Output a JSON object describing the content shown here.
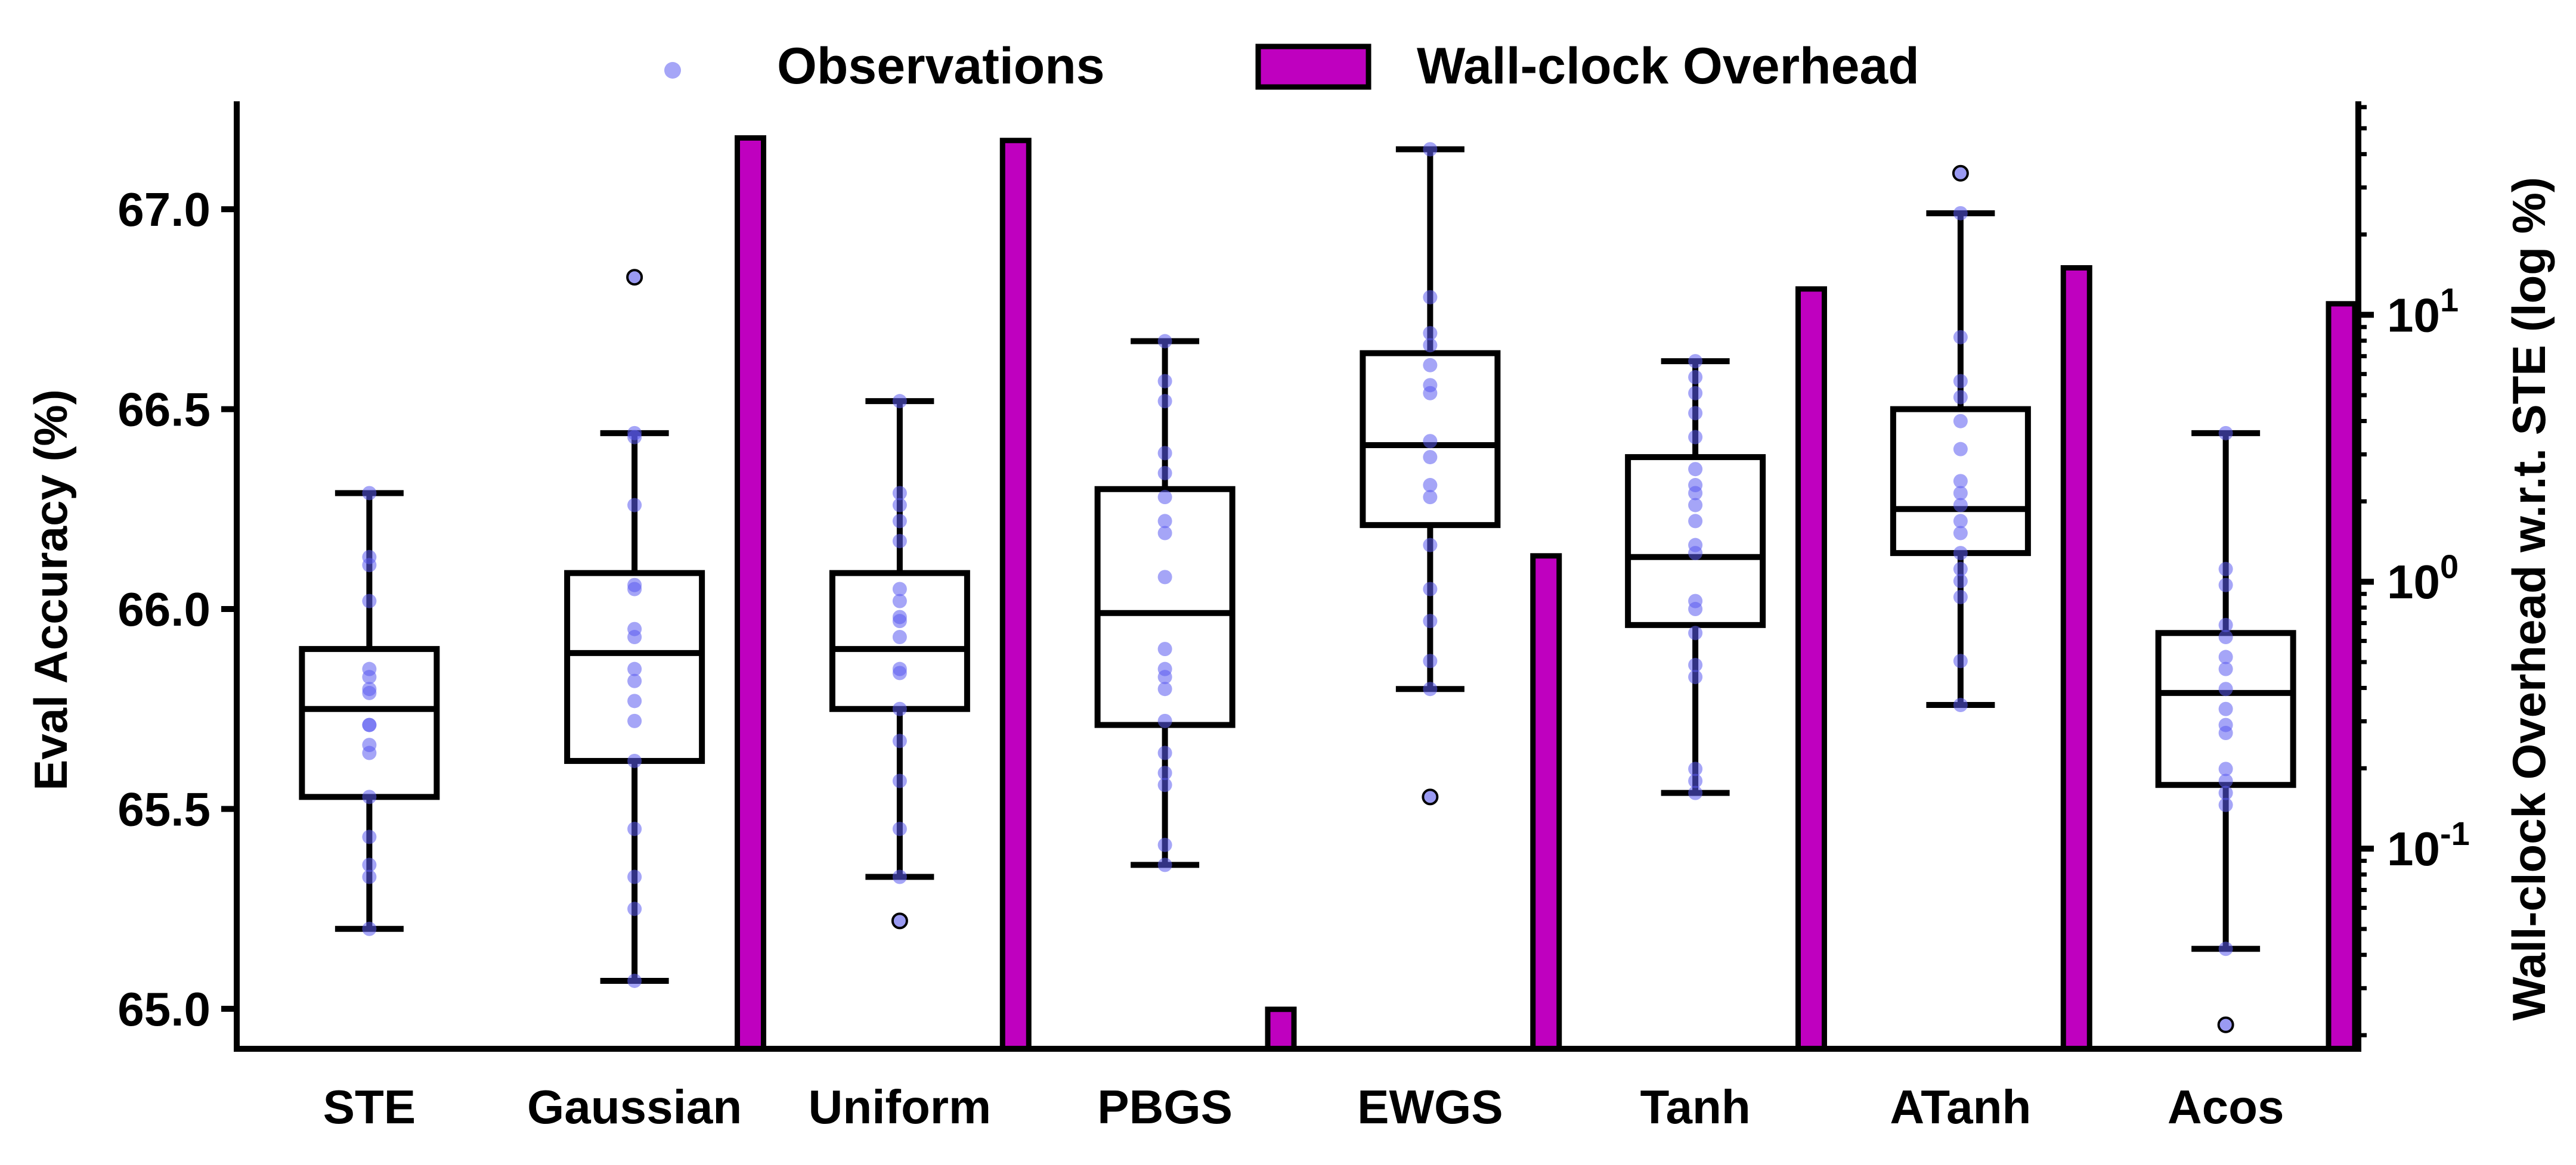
{
  "chart_data": {
    "type": "box+bar",
    "title": "",
    "xlabel": "",
    "ylabel": "Eval Accuracy (%)",
    "y2label": "Wall-clock Overhead w.r.t. STE (log %)",
    "ylim": [
      64.9,
      67.27
    ],
    "y2lim_log10": [
      -1.75,
      1.8
    ],
    "y_ticks": [
      65.0,
      65.5,
      66.0,
      66.5,
      67.0
    ],
    "y_tick_labels": [
      "65.0",
      "65.5",
      "66.0",
      "66.5",
      "67.0"
    ],
    "y2_ticks_log10": [
      -1,
      0,
      1
    ],
    "y2_tick_labels": [
      {
        "base": "10",
        "exp": "-1"
      },
      {
        "base": "10",
        "exp": "0"
      },
      {
        "base": "10",
        "exp": "1"
      }
    ],
    "legend": {
      "placement": "top-center",
      "entries": [
        {
          "label": "Observations",
          "kind": "dot"
        },
        {
          "label": "Wall-clock Overhead",
          "kind": "bar"
        }
      ]
    },
    "colors": {
      "observation": "#5b5bf0",
      "outlier_fill": "#9a9af2",
      "bar_fill": "#bf00bf",
      "box_stroke": "#000000"
    },
    "categories": [
      "STE",
      "Gaussian",
      "Uniform",
      "PBGS",
      "EWGS",
      "Tanh",
      "ATanh",
      "Acos"
    ],
    "boxes": [
      {
        "category": "STE",
        "whisker_low": 65.2,
        "q1": 65.53,
        "median": 65.75,
        "q3": 65.9,
        "whisker_high": 66.29,
        "outliers": []
      },
      {
        "category": "Gaussian",
        "whisker_low": 65.07,
        "q1": 65.62,
        "median": 65.89,
        "q3": 66.09,
        "whisker_high": 66.44,
        "outliers": [
          66.83
        ]
      },
      {
        "category": "Uniform",
        "whisker_low": 65.33,
        "q1": 65.75,
        "median": 65.9,
        "q3": 66.09,
        "whisker_high": 66.52,
        "outliers": [
          65.22
        ]
      },
      {
        "category": "PBGS",
        "whisker_low": 65.36,
        "q1": 65.71,
        "median": 65.99,
        "q3": 66.3,
        "whisker_high": 66.67,
        "outliers": []
      },
      {
        "category": "EWGS",
        "whisker_low": 65.8,
        "q1": 66.21,
        "median": 66.41,
        "q3": 66.64,
        "whisker_high": 67.15,
        "outliers": [
          65.53
        ]
      },
      {
        "category": "Tanh",
        "whisker_low": 65.54,
        "q1": 65.96,
        "median": 66.13,
        "q3": 66.38,
        "whisker_high": 66.62,
        "outliers": []
      },
      {
        "category": "ATanh",
        "whisker_low": 65.76,
        "q1": 66.14,
        "median": 66.25,
        "q3": 66.5,
        "whisker_high": 66.99,
        "outliers": [
          67.09
        ]
      },
      {
        "category": "Acos",
        "whisker_low": 65.15,
        "q1": 65.56,
        "median": 65.79,
        "q3": 65.94,
        "whisker_high": 66.44,
        "outliers": [
          64.96
        ]
      }
    ],
    "observations": [
      [
        65.2,
        65.33,
        65.36,
        65.43,
        65.53,
        65.64,
        65.66,
        65.71,
        65.71,
        65.79,
        65.8,
        65.83,
        65.85,
        66.02,
        66.11,
        66.13,
        66.29
      ],
      [
        65.07,
        65.25,
        65.33,
        65.45,
        65.62,
        65.72,
        65.77,
        65.82,
        65.85,
        65.93,
        65.95,
        66.05,
        66.06,
        66.26,
        66.43,
        66.44
      ],
      [
        65.33,
        65.45,
        65.57,
        65.67,
        65.75,
        65.84,
        65.85,
        65.93,
        65.97,
        65.98,
        66.02,
        66.05,
        66.17,
        66.22,
        66.26,
        66.29,
        66.52
      ],
      [
        65.36,
        65.41,
        65.56,
        65.59,
        65.64,
        65.72,
        65.8,
        65.83,
        65.85,
        65.9,
        66.08,
        66.19,
        66.22,
        66.28,
        66.34,
        66.39,
        66.52,
        66.57,
        66.67
      ],
      [
        65.8,
        65.87,
        65.97,
        66.05,
        66.16,
        66.28,
        66.31,
        66.38,
        66.42,
        66.54,
        66.56,
        66.61,
        66.66,
        66.69,
        66.78,
        67.15
      ],
      [
        65.54,
        65.57,
        65.6,
        65.83,
        65.86,
        65.94,
        66.0,
        66.02,
        66.14,
        66.16,
        66.22,
        66.26,
        66.29,
        66.31,
        66.35,
        66.43,
        66.49,
        66.54,
        66.58,
        66.62
      ],
      [
        65.76,
        65.87,
        66.03,
        66.07,
        66.1,
        66.14,
        66.19,
        66.22,
        66.26,
        66.29,
        66.32,
        66.4,
        66.47,
        66.53,
        66.57,
        66.68,
        66.99
      ],
      [
        65.15,
        65.51,
        65.54,
        65.57,
        65.6,
        65.69,
        65.71,
        65.75,
        65.8,
        65.85,
        65.88,
        65.93,
        65.96,
        66.06,
        66.1,
        66.44
      ]
    ],
    "bars": [
      {
        "category": "Gaussian",
        "overhead_pct": 46.0
      },
      {
        "category": "Uniform",
        "overhead_pct": 45.0
      },
      {
        "category": "PBGS",
        "overhead_pct": 0.025
      },
      {
        "category": "EWGS",
        "overhead_pct": 1.25
      },
      {
        "category": "Tanh",
        "overhead_pct": 12.5
      },
      {
        "category": "ATanh",
        "overhead_pct": 15.0
      },
      {
        "category": "Acos",
        "overhead_pct": 11.0
      }
    ]
  }
}
